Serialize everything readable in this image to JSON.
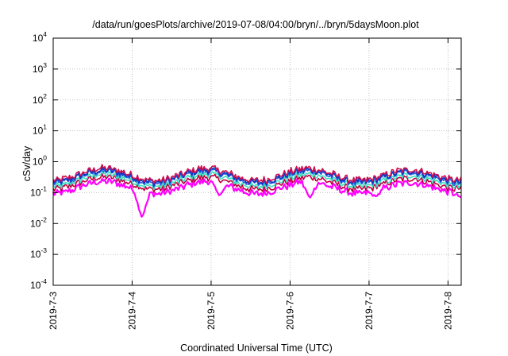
{
  "chart_data": {
    "type": "line",
    "title": "/data/run/goesPlots/archive/2019-07-08/04:00/bryn/../bryn/5daysMoon.plot",
    "xlabel": "Coordinated Universal Time (UTC)",
    "ylabel": "cSv/day",
    "yscale": "log",
    "ylim": [
      0.0001,
      10000
    ],
    "y_ticks": [
      {
        "value": 0.0001,
        "base": "10",
        "exp": "-4"
      },
      {
        "value": 0.001,
        "base": "10",
        "exp": "-3"
      },
      {
        "value": 0.01,
        "base": "10",
        "exp": "-2"
      },
      {
        "value": 0.1,
        "base": "10",
        "exp": "-1"
      },
      {
        "value": 1,
        "base": "10",
        "exp": "0"
      },
      {
        "value": 10,
        "base": "10",
        "exp": "1"
      },
      {
        "value": 100,
        "base": "10",
        "exp": "2"
      },
      {
        "value": 1000,
        "base": "10",
        "exp": "3"
      },
      {
        "value": 10000,
        "base": "10",
        "exp": "4"
      }
    ],
    "x_range_days": [
      "2019-07-03T00:00",
      "2019-07-08T04:00"
    ],
    "x_ticks": [
      "2019-7-3",
      "2019-7-4",
      "2019-7-5",
      "2019-7-6",
      "2019-7-7",
      "2019-7-8"
    ],
    "grid": true,
    "series": [
      {
        "color": "#ff00ff",
        "role": "lower"
      },
      {
        "color": "#c00040",
        "role": "low-mid"
      },
      {
        "color": "#40e0c0",
        "role": "mid"
      },
      {
        "color": "#2060e0",
        "role": "high-mid"
      },
      {
        "color": "#1030c0",
        "role": "upper"
      },
      {
        "color": "#d01050",
        "role": "top"
      }
    ],
    "pattern_values": {
      "day_level_upper": [
        0.22,
        0.55,
        0.22,
        0.55,
        0.22,
        0.55,
        0.22,
        0.5,
        0.22
      ],
      "dips": [
        {
          "date": "2019-07-04T03:00",
          "value": 0.015
        },
        {
          "date": "2019-07-05T02:30",
          "value": 0.08
        },
        {
          "date": "2019-07-06T06:00",
          "value": 0.065
        },
        {
          "date": "2019-07-07T02:00",
          "value": 0.075
        },
        {
          "date": "2019-07-08T04:00",
          "value": 0.07
        }
      ]
    }
  }
}
